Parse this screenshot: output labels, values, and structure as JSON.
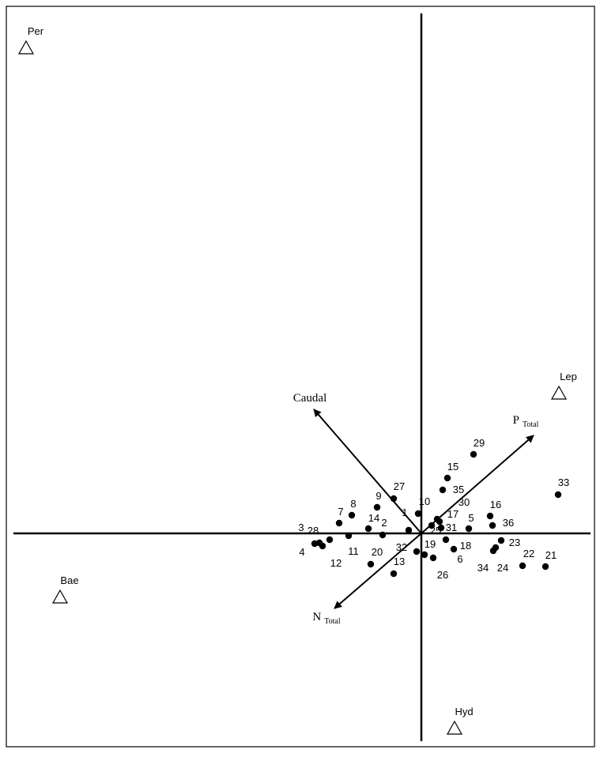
{
  "chart_data": {
    "type": "biplot",
    "xlim": [
      -5.25,
      2.19
    ],
    "ylim": [
      -2.7,
      6.67
    ],
    "sites": {
      "color": "#000000",
      "labels": [
        "1",
        "2",
        "3",
        "4",
        "5",
        "6",
        "7",
        "8",
        "9",
        "10",
        "11",
        "12",
        "13",
        "14",
        "15",
        "16",
        "17",
        "18",
        "19",
        "20",
        "21",
        "22",
        "23",
        "24",
        "25",
        "26",
        "27",
        "28",
        "29",
        "30",
        "31",
        "32",
        "33",
        "34",
        "35",
        "36"
      ],
      "x": [
        -0.16,
        -0.49,
        -1.29,
        -1.35,
        0.6,
        0.41,
        -1.04,
        -0.88,
        -0.56,
        -0.04,
        -0.92,
        -1.25,
        -0.35,
        -0.67,
        0.33,
        0.87,
        0.23,
        0.31,
        0.04,
        -0.64,
        1.57,
        1.28,
        1.01,
        0.94,
        0.13,
        0.15,
        -0.35,
        -1.16,
        0.66,
        0.2,
        0.25,
        -0.06,
        1.73,
        0.91,
        0.27,
        0.9
      ],
      "y": [
        0.04,
        -0.02,
        -0.12,
        -0.13,
        0.06,
        -0.2,
        0.13,
        0.23,
        0.33,
        0.25,
        -0.03,
        -0.16,
        -0.51,
        0.06,
        0.7,
        0.22,
        0.15,
        -0.08,
        -0.27,
        -0.39,
        -0.42,
        -0.41,
        -0.09,
        -0.18,
        0.1,
        -0.31,
        0.44,
        -0.08,
        1.0,
        0.18,
        0.07,
        -0.23,
        0.49,
        -0.22,
        0.55,
        0.1
      ]
    },
    "species": {
      "labels": [
        "Per",
        "Lep",
        "Bae",
        "Hyd"
      ],
      "x": [
        -5.0,
        1.74,
        -4.57,
        0.42
      ],
      "y": [
        6.15,
        1.78,
        -0.8,
        -2.46
      ]
    },
    "vectors": [
      {
        "name": "Caudal",
        "x": -1.36,
        "y": 1.57
      },
      {
        "name": "P",
        "subscript": "Total",
        "x": 1.42,
        "y": 1.24
      },
      {
        "name": "N",
        "subscript": "Total",
        "x": -1.1,
        "y": -0.95
      }
    ]
  }
}
